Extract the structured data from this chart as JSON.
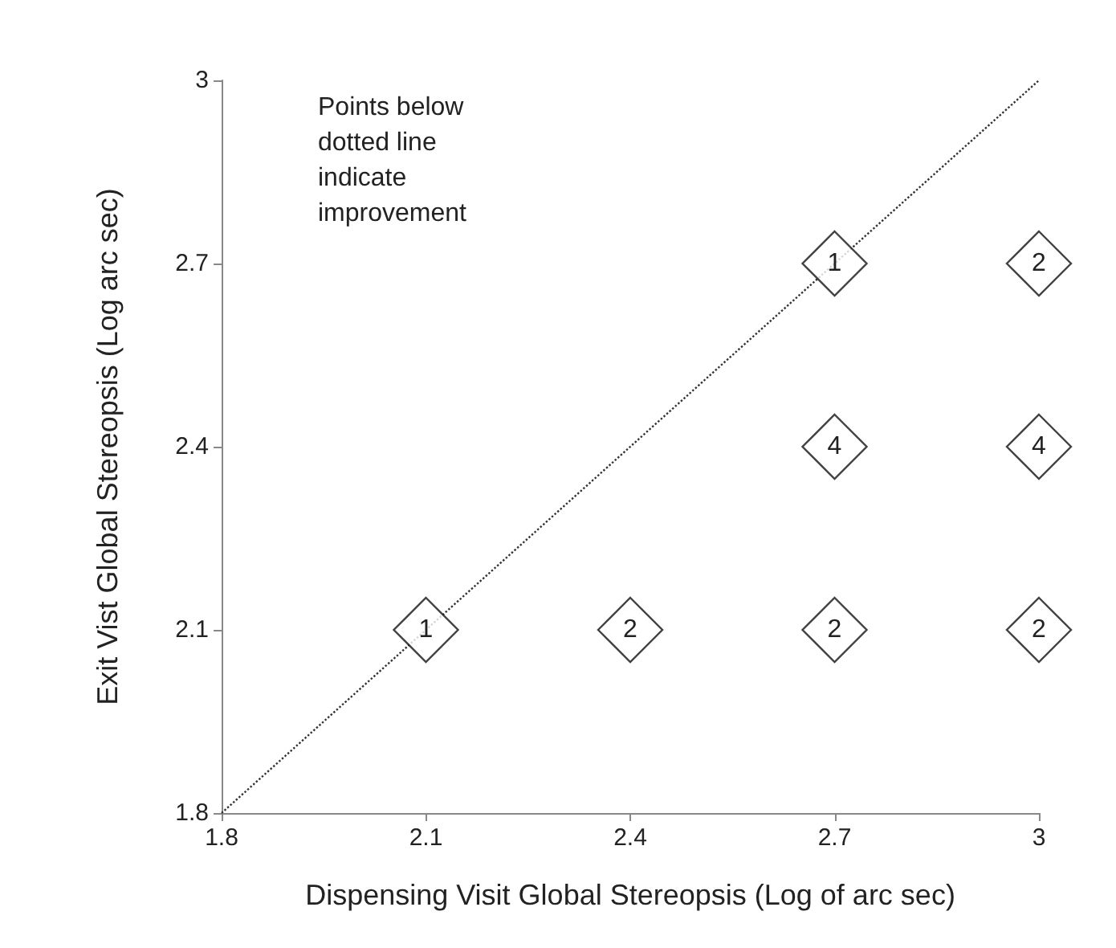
{
  "chart_data": {
    "type": "scatter",
    "xlabel": "Dispensing Visit Global Stereopsis (Log of arc sec)",
    "ylabel": "Exit Vist Global Stereopsis (Log arc sec)",
    "xlim": [
      1.8,
      3
    ],
    "ylim": [
      1.8,
      3
    ],
    "xticks": [
      1.8,
      2.1,
      2.4,
      2.7,
      3
    ],
    "yticks": [
      1.8,
      2.1,
      2.4,
      2.7,
      3
    ],
    "grid": false,
    "annotations": [
      "Points below dotted line indicate improvement",
      {
        "text": "1",
        "x": 2.1,
        "y": 2.1
      },
      {
        "text": "2",
        "x": 2.4,
        "y": 2.1
      },
      {
        "text": "2",
        "x": 2.7,
        "y": 2.1
      },
      {
        "text": "2",
        "x": 3,
        "y": 2.1
      },
      {
        "text": "4",
        "x": 2.7,
        "y": 2.4
      },
      {
        "text": "4",
        "x": 3,
        "y": 2.4
      },
      {
        "text": "1",
        "x": 2.7,
        "y": 2.7
      },
      {
        "text": "2",
        "x": 3,
        "y": 2.7
      }
    ],
    "series": [
      {
        "type": "line",
        "color": "#333333",
        "x": [
          1.8,
          3
        ],
        "values": [
          1.8,
          3
        ],
        "line_style": "dotted",
        "marker": "none"
      },
      {
        "color": "#ffffff",
        "marker": "diamond",
        "x": [
          2.1,
          2.4,
          2.7,
          3,
          2.7,
          3,
          2.7,
          3
        ],
        "values": [
          2.1,
          2.1,
          2.1,
          2.1,
          2.4,
          2.4,
          2.7,
          2.7
        ]
      }
    ]
  }
}
